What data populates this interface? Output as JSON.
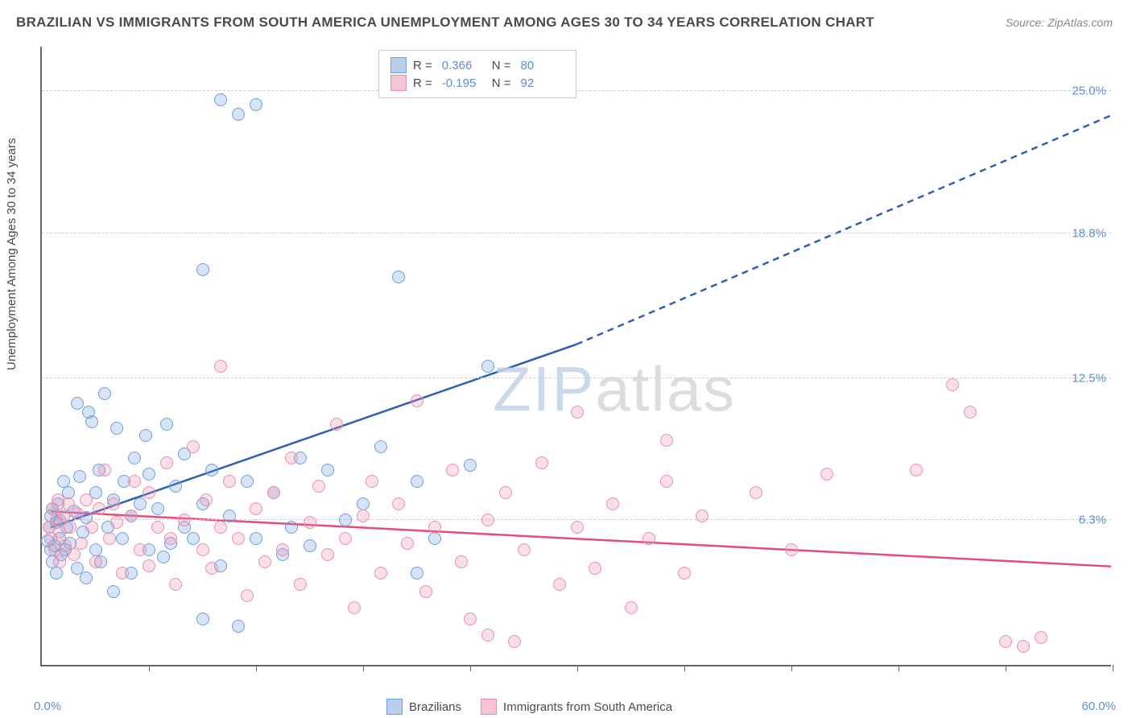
{
  "title": "BRAZILIAN VS IMMIGRANTS FROM SOUTH AMERICA UNEMPLOYMENT AMONG AGES 30 TO 34 YEARS CORRELATION CHART",
  "source": "Source: ZipAtlas.com",
  "ylabel": "Unemployment Among Ages 30 to 34 years",
  "watermark_a": "ZIP",
  "watermark_b": "atlas",
  "chart": {
    "type": "scatter",
    "background_color": "#ffffff",
    "grid_color": "#d0d0d0",
    "axis_color": "#666666",
    "label_color": "#5b8fd6",
    "text_color": "#4a4a4a",
    "xlim": [
      0,
      60
    ],
    "ylim": [
      0,
      27
    ],
    "x_min_label": "0.0%",
    "x_max_label": "60.0%",
    "x_ticks": [
      0,
      6,
      12,
      18,
      24,
      30,
      36,
      42,
      48,
      54,
      60
    ],
    "y_ticks": [
      {
        "v": 6.3,
        "label": "6.3%"
      },
      {
        "v": 12.5,
        "label": "12.5%"
      },
      {
        "v": 18.8,
        "label": "18.8%"
      },
      {
        "v": 25.0,
        "label": "25.0%"
      }
    ],
    "marker_radius": 8,
    "marker_fill_opacity": 0.28,
    "line_width": 2.5,
    "series": [
      {
        "name": "Brazilians",
        "color": "#6f9fde",
        "line_color": "#2f5fb5",
        "swatch_fill": "#b9cfec",
        "R": "0.366",
        "N": "80",
        "trend": {
          "x1": 0.5,
          "y1": 6.0,
          "x2": 30,
          "y2": 14.0,
          "x3": 60,
          "y3": 24.0
        },
        "points": [
          [
            0.3,
            5.4
          ],
          [
            0.4,
            6.0
          ],
          [
            0.5,
            5.0
          ],
          [
            0.5,
            6.5
          ],
          [
            0.6,
            4.5
          ],
          [
            0.6,
            6.8
          ],
          [
            0.7,
            5.2
          ],
          [
            0.8,
            6.2
          ],
          [
            0.8,
            4.0
          ],
          [
            0.9,
            7.0
          ],
          [
            1.0,
            5.5
          ],
          [
            1.0,
            6.3
          ],
          [
            1.1,
            4.8
          ],
          [
            1.2,
            8.0
          ],
          [
            1.3,
            5.0
          ],
          [
            1.4,
            6.0
          ],
          [
            1.5,
            7.5
          ],
          [
            1.6,
            5.3
          ],
          [
            1.8,
            6.7
          ],
          [
            2.0,
            4.2
          ],
          [
            2.0,
            11.4
          ],
          [
            2.1,
            8.2
          ],
          [
            2.3,
            5.8
          ],
          [
            2.5,
            6.4
          ],
          [
            2.5,
            3.8
          ],
          [
            2.6,
            11.0
          ],
          [
            2.8,
            10.6
          ],
          [
            3.0,
            7.5
          ],
          [
            3.0,
            5.0
          ],
          [
            3.2,
            8.5
          ],
          [
            3.3,
            4.5
          ],
          [
            3.5,
            11.8
          ],
          [
            3.7,
            6.0
          ],
          [
            4.0,
            7.2
          ],
          [
            4.0,
            3.2
          ],
          [
            4.2,
            10.3
          ],
          [
            4.5,
            5.5
          ],
          [
            4.6,
            8.0
          ],
          [
            5.0,
            6.5
          ],
          [
            5.0,
            4.0
          ],
          [
            5.2,
            9.0
          ],
          [
            5.5,
            7.0
          ],
          [
            5.8,
            10.0
          ],
          [
            6.0,
            5.0
          ],
          [
            6.0,
            8.3
          ],
          [
            6.5,
            6.8
          ],
          [
            6.8,
            4.7
          ],
          [
            7.0,
            10.5
          ],
          [
            7.2,
            5.3
          ],
          [
            7.5,
            7.8
          ],
          [
            8.0,
            6.0
          ],
          [
            8.0,
            9.2
          ],
          [
            8.5,
            5.5
          ],
          [
            9.0,
            2.0
          ],
          [
            9.0,
            7.0
          ],
          [
            9.5,
            8.5
          ],
          [
            10.0,
            24.6
          ],
          [
            10.0,
            4.3
          ],
          [
            10.5,
            6.5
          ],
          [
            11.0,
            24.0
          ],
          [
            11.0,
            1.7
          ],
          [
            11.5,
            8.0
          ],
          [
            12.0,
            24.4
          ],
          [
            12.0,
            5.5
          ],
          [
            9.0,
            17.2
          ],
          [
            13.0,
            7.5
          ],
          [
            13.5,
            4.8
          ],
          [
            14.0,
            6.0
          ],
          [
            14.5,
            9.0
          ],
          [
            15.0,
            5.2
          ],
          [
            16.0,
            8.5
          ],
          [
            17.0,
            6.3
          ],
          [
            18.0,
            7.0
          ],
          [
            19.0,
            9.5
          ],
          [
            20.0,
            16.9
          ],
          [
            21.0,
            8.0
          ],
          [
            22.0,
            5.5
          ],
          [
            25.0,
            13.0
          ],
          [
            24.0,
            8.7
          ],
          [
            21.0,
            4.0
          ]
        ]
      },
      {
        "name": "Immigrants from South America",
        "color": "#eb8fab",
        "line_color": "#e34d7a",
        "swatch_fill": "#f5c4d3",
        "R": "-0.195",
        "N": "92",
        "trend": {
          "x1": 0.5,
          "y1": 6.7,
          "x2": 60,
          "y2": 4.3,
          "x3": 60,
          "y3": 4.3
        },
        "points": [
          [
            0.4,
            6.0
          ],
          [
            0.5,
            5.5
          ],
          [
            0.6,
            6.8
          ],
          [
            0.7,
            5.0
          ],
          [
            0.8,
            6.3
          ],
          [
            0.9,
            7.2
          ],
          [
            1.0,
            5.8
          ],
          [
            1.0,
            4.5
          ],
          [
            1.2,
            6.5
          ],
          [
            1.3,
            5.2
          ],
          [
            1.5,
            7.0
          ],
          [
            1.6,
            6.0
          ],
          [
            1.8,
            4.8
          ],
          [
            2.0,
            6.6
          ],
          [
            2.2,
            5.3
          ],
          [
            2.5,
            7.2
          ],
          [
            2.8,
            6.0
          ],
          [
            3.0,
            4.5
          ],
          [
            3.2,
            6.8
          ],
          [
            3.5,
            8.5
          ],
          [
            3.8,
            5.5
          ],
          [
            4.0,
            7.0
          ],
          [
            4.2,
            6.2
          ],
          [
            4.5,
            4.0
          ],
          [
            5.0,
            6.5
          ],
          [
            5.2,
            8.0
          ],
          [
            5.5,
            5.0
          ],
          [
            6.0,
            7.5
          ],
          [
            6.0,
            4.3
          ],
          [
            6.5,
            6.0
          ],
          [
            7.0,
            8.8
          ],
          [
            7.2,
            5.5
          ],
          [
            7.5,
            3.5
          ],
          [
            8.0,
            6.3
          ],
          [
            8.5,
            9.5
          ],
          [
            9.0,
            5.0
          ],
          [
            9.2,
            7.2
          ],
          [
            9.5,
            4.2
          ],
          [
            10.0,
            6.0
          ],
          [
            10.0,
            13.0
          ],
          [
            10.5,
            8.0
          ],
          [
            11.0,
            5.5
          ],
          [
            11.5,
            3.0
          ],
          [
            12.0,
            6.8
          ],
          [
            12.5,
            4.5
          ],
          [
            13.0,
            7.5
          ],
          [
            13.5,
            5.0
          ],
          [
            14.0,
            9.0
          ],
          [
            14.5,
            3.5
          ],
          [
            15.0,
            6.2
          ],
          [
            15.5,
            7.8
          ],
          [
            16.0,
            4.8
          ],
          [
            16.5,
            10.5
          ],
          [
            17.0,
            5.5
          ],
          [
            17.5,
            2.5
          ],
          [
            18.0,
            6.5
          ],
          [
            18.5,
            8.0
          ],
          [
            19.0,
            4.0
          ],
          [
            20.0,
            7.0
          ],
          [
            20.5,
            5.3
          ],
          [
            21.0,
            11.5
          ],
          [
            21.5,
            3.2
          ],
          [
            22.0,
            6.0
          ],
          [
            23.0,
            8.5
          ],
          [
            23.5,
            4.5
          ],
          [
            24.0,
            2.0
          ],
          [
            25.0,
            6.3
          ],
          [
            25.0,
            1.3
          ],
          [
            26.0,
            7.5
          ],
          [
            26.5,
            1.0
          ],
          [
            27.0,
            5.0
          ],
          [
            28.0,
            8.8
          ],
          [
            29.0,
            3.5
          ],
          [
            30.0,
            6.0
          ],
          [
            31.0,
            4.2
          ],
          [
            32.0,
            7.0
          ],
          [
            33.0,
            2.5
          ],
          [
            34.0,
            5.5
          ],
          [
            35.0,
            8.0
          ],
          [
            35.0,
            9.8
          ],
          [
            36.0,
            4.0
          ],
          [
            37.0,
            6.5
          ],
          [
            30.0,
            11.0
          ],
          [
            40.0,
            7.5
          ],
          [
            42.0,
            5.0
          ],
          [
            44.0,
            8.3
          ],
          [
            52.0,
            11.0
          ],
          [
            49.0,
            8.5
          ],
          [
            51.0,
            12.2
          ],
          [
            54.0,
            1.0
          ],
          [
            55.0,
            0.8
          ],
          [
            56.0,
            1.2
          ]
        ]
      }
    ]
  },
  "legend_top": {
    "R_label": "R =",
    "N_label": "N ="
  }
}
